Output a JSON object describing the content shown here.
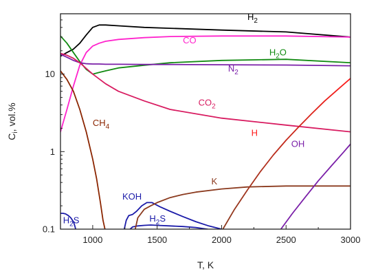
{
  "chart_data": {
    "type": "line",
    "title": "",
    "xlabel": "T, K",
    "ylabel": "C_i, vol.%",
    "ylabel_main": "C",
    "ylabel_sub": "i",
    "ylabel_rest": ", vol.%",
    "xlim": [
      750,
      3000
    ],
    "ylim": [
      0.1,
      60
    ],
    "yscale": "log",
    "xticks": [
      1000,
      1500,
      2000,
      2500,
      3000
    ],
    "xtick_labels": [
      "1000",
      "1500",
      "2000",
      "2500",
      "3000"
    ],
    "yticks": [
      0.1,
      1,
      10
    ],
    "ytick_labels": [
      "0.1",
      "1",
      "10"
    ],
    "grid": false,
    "legend": "none",
    "series": [
      {
        "name": "H2",
        "label_main": "H",
        "label_sub": "2",
        "color": "#000000",
        "x": [
          750,
          800,
          850,
          900,
          950,
          1000,
          1050,
          1100,
          1200,
          1400,
          1600,
          2000,
          2500,
          3000
        ],
        "y": [
          17,
          19,
          21,
          25,
          32,
          40,
          43,
          43,
          42,
          40,
          39,
          37,
          35,
          30
        ]
      },
      {
        "name": "CO",
        "label_main": "CO",
        "label_sub": "",
        "color": "#ff22cc",
        "x": [
          750,
          800,
          850,
          900,
          950,
          1000,
          1050,
          1100,
          1200,
          1400,
          1600,
          2000,
          2500,
          3000
        ],
        "y": [
          1.8,
          3.5,
          7,
          13,
          19,
          23,
          25,
          26.5,
          28,
          29.5,
          30.5,
          31,
          31,
          30
        ]
      },
      {
        "name": "H2O",
        "label_main": "H",
        "label_sub": "2",
        "label_rest": "O",
        "color": "#118a11",
        "x": [
          750,
          800,
          850,
          900,
          950,
          1000,
          1050,
          1100,
          1200,
          1400,
          1600,
          2000,
          2500,
          3000
        ],
        "y": [
          31,
          25,
          19,
          14.5,
          11.5,
          10,
          10.5,
          11,
          12,
          13,
          14,
          15,
          15.5,
          14
        ]
      },
      {
        "name": "N2",
        "label_main": "N",
        "label_sub": "2",
        "color": "#7a1fa8",
        "x": [
          750,
          800,
          850,
          900,
          950,
          1000,
          1050,
          1100,
          1200,
          1400,
          1600,
          2000,
          2500,
          3000
        ],
        "y": [
          18,
          16.5,
          15,
          14,
          13.6,
          13.5,
          13.5,
          13.4,
          13.4,
          13.3,
          13.3,
          13.2,
          13.1,
          12.8
        ]
      },
      {
        "name": "CO2",
        "label_main": "CO",
        "label_sub": "2",
        "color": "#d81b60",
        "x": [
          750,
          800,
          850,
          900,
          1000,
          1100,
          1200,
          1400,
          1600,
          2000,
          2500,
          3000
        ],
        "y": [
          18.5,
          17.5,
          16,
          14,
          10,
          7.5,
          6,
          4.5,
          3.5,
          2.7,
          2.2,
          1.8
        ]
      },
      {
        "name": "CH4",
        "label_main": "CH",
        "label_sub": "4",
        "color": "#8b2500",
        "x": [
          750,
          800,
          850,
          900,
          950,
          1000,
          1030,
          1060,
          1080,
          1095
        ],
        "y": [
          11,
          8.5,
          6,
          3.5,
          1.8,
          0.8,
          0.45,
          0.22,
          0.13,
          0.1
        ]
      },
      {
        "name": "H2S (low T)",
        "label_main": "H",
        "label_sub": "2",
        "label_rest": "S",
        "color": "#1a1aa8",
        "x": [
          750,
          770,
          790,
          810,
          830,
          850,
          860,
          868
        ],
        "y": [
          0.16,
          0.16,
          0.157,
          0.15,
          0.14,
          0.125,
          0.112,
          0.1
        ]
      },
      {
        "name": "KOH",
        "label_main": "KOH",
        "label_sub": "",
        "color": "#1a1aa8",
        "x": [
          1245,
          1260,
          1280,
          1310,
          1340,
          1380,
          1420,
          1460,
          1520,
          1600,
          1700,
          1800,
          1900,
          2000
        ],
        "y": [
          0.1,
          0.13,
          0.15,
          0.155,
          0.17,
          0.2,
          0.22,
          0.22,
          0.195,
          0.17,
          0.145,
          0.125,
          0.11,
          0.1
        ]
      },
      {
        "name": "H2S (high T)",
        "label_main": "H",
        "label_sub": "2",
        "label_rest": "S",
        "color": "#1a1aa8",
        "x": [
          1290,
          1310,
          1350,
          1400,
          1450,
          1500,
          1600,
          1700,
          1800,
          1850,
          1890
        ],
        "y": [
          0.1,
          0.107,
          0.11,
          0.112,
          0.113,
          0.112,
          0.11,
          0.108,
          0.105,
          0.102,
          0.1
        ]
      },
      {
        "name": "K",
        "label_main": "K",
        "label_sub": "",
        "color": "#8b3a1e",
        "x": [
          1330,
          1350,
          1400,
          1450,
          1500,
          1600,
          1700,
          1800,
          2000,
          2200,
          2500,
          2800,
          3000
        ],
        "y": [
          0.1,
          0.14,
          0.18,
          0.2,
          0.22,
          0.255,
          0.28,
          0.3,
          0.33,
          0.35,
          0.36,
          0.36,
          0.36
        ]
      },
      {
        "name": "H",
        "label_main": "H",
        "label_sub": "",
        "color": "#8b3a1e",
        "color_end": "#ff1a1a",
        "x": [
          2010,
          2100,
          2200,
          2300,
          2400,
          2500,
          2600,
          2700,
          2800,
          2900,
          3000
        ],
        "y": [
          0.1,
          0.18,
          0.32,
          0.55,
          0.9,
          1.4,
          2.1,
          3.1,
          4.5,
          6.3,
          8.8
        ]
      },
      {
        "name": "OH",
        "label_main": "OH",
        "label_sub": "",
        "color": "#7a1fa8",
        "x": [
          2460,
          2550,
          2650,
          2750,
          2850,
          2950,
          3000
        ],
        "y": [
          0.1,
          0.16,
          0.26,
          0.42,
          0.65,
          1.0,
          1.25
        ]
      }
    ],
    "annotations": [
      {
        "series": "H2",
        "x": 2200,
        "y": 50
      },
      {
        "series": "CO",
        "x": 1700,
        "y": 25
      },
      {
        "series": "H2O",
        "x": 2370,
        "y": 17.5
      },
      {
        "series": "N2",
        "x": 2050,
        "y": 10.8
      },
      {
        "series": "CO2",
        "x": 1820,
        "y": 3.9
      },
      {
        "series": "CH4",
        "x": 1000,
        "y": 2.15
      },
      {
        "series": "H2S (low T)",
        "x": 770,
        "y": 0.119
      },
      {
        "series": "KOH",
        "x": 1230,
        "y": 0.24
      },
      {
        "series": "H2S (high T)",
        "x": 1440,
        "y": 0.125
      },
      {
        "series": "K",
        "x": 1920,
        "y": 0.378
      },
      {
        "series": "H",
        "x": 2230,
        "y": 1.6
      },
      {
        "series": "OH",
        "x": 2540,
        "y": 1.15
      }
    ]
  }
}
